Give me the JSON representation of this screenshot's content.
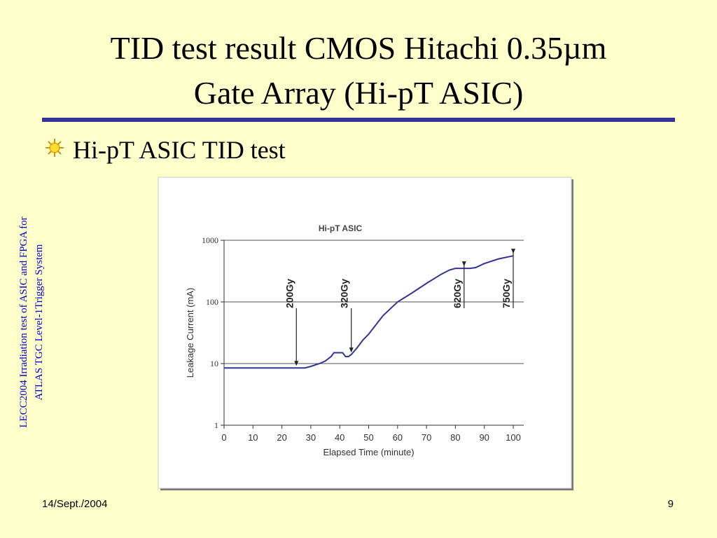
{
  "slide": {
    "title": [
      "TID test result CMOS Hitachi 0.35µm",
      "Gate Array (Hi-pT ASIC)"
    ],
    "bullet": "Hi-pT ASIC TID test",
    "side_text": [
      "LECC2004 Irradiation test of ASIC and FPGA for",
      "ATLAS TGC Level-1Trigger System"
    ],
    "date": "14/Sept./2004",
    "page": "9"
  },
  "chart_data": {
    "type": "line",
    "title": "Hi-pT ASIC",
    "x_label": "Elapsed Time (minute)",
    "y_label": "Leakage Current (mA)",
    "x": [
      0,
      5,
      10,
      15,
      20,
      25,
      28,
      30,
      33,
      35,
      37,
      38,
      40,
      41,
      42,
      43,
      44,
      46,
      48,
      50,
      55,
      60,
      65,
      70,
      75,
      78,
      80,
      85,
      87,
      90,
      95,
      100
    ],
    "series": [
      {
        "name": "Hi-pT ASIC",
        "color": "#333399",
        "values": [
          8.5,
          8.5,
          8.5,
          8.5,
          8.5,
          8.5,
          8.5,
          9,
          10,
          11,
          13,
          15,
          15,
          15,
          13,
          13,
          14,
          18,
          24,
          30,
          60,
          100,
          140,
          200,
          280,
          330,
          350,
          350,
          360,
          420,
          500,
          560
        ]
      }
    ],
    "xlim": [
      0,
      100
    ],
    "xticks": [
      0,
      10,
      20,
      30,
      40,
      50,
      60,
      70,
      80,
      90,
      100
    ],
    "ylim": [
      1,
      1000
    ],
    "yticks": [
      1,
      10,
      100,
      1000
    ],
    "log_y": true,
    "grid": true,
    "annotations": [
      {
        "text": "200Gy",
        "x": 25
      },
      {
        "text": "320Gy",
        "x": 44
      },
      {
        "text": "620Gy",
        "x": 83
      },
      {
        "text": "750Gy",
        "x": 100
      }
    ]
  }
}
